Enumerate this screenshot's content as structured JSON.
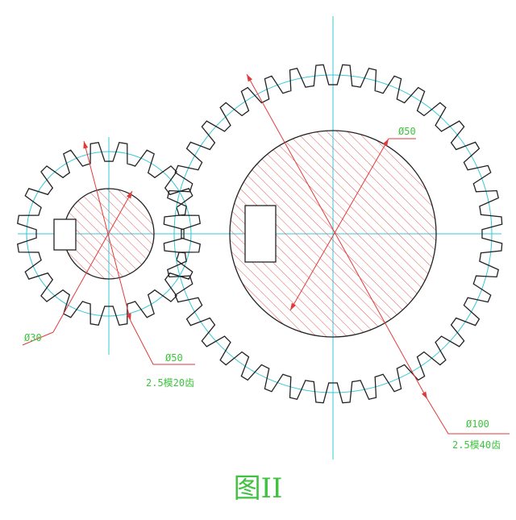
{
  "colors": {
    "outline": "#222222",
    "centerline": "#36c8d6",
    "hatch": "#e25b5b",
    "dimension": "#e23a3a",
    "text": "#3fc23f"
  },
  "small_gear": {
    "teeth": 20,
    "labels": {
      "bore": "Ø30",
      "tip": "Ø50",
      "spec": "2.5模20齿"
    }
  },
  "large_gear": {
    "teeth": 40,
    "labels": {
      "bore": "Ø50",
      "tip": "Ø100",
      "spec": "2.5模40齿"
    }
  },
  "caption": "图II"
}
